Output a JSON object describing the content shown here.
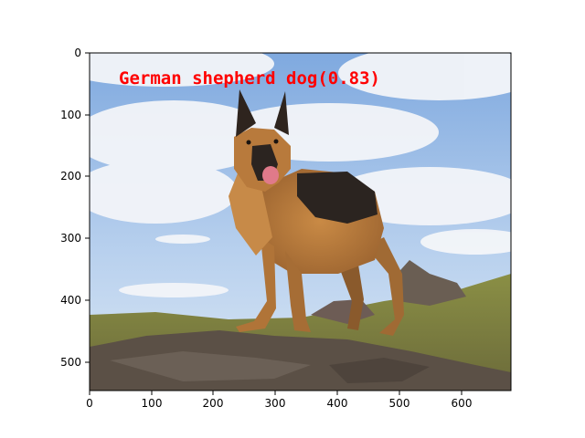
{
  "image": {
    "description_colors": {
      "sky_top": "#8fb6e6",
      "sky_bottom": "#c9dcf2",
      "cloud": "#f4f6fa",
      "grass": "#7f8a3a",
      "rock": "#5e5247",
      "dog_tan": "#b87a3c",
      "dog_black": "#2a2420"
    }
  },
  "detection": {
    "label": "German shepherd dog(0.83)",
    "color": "#ff0000"
  },
  "axes": {
    "x_ticks": [
      "0",
      "100",
      "200",
      "300",
      "400",
      "500",
      "600"
    ],
    "y_ticks": [
      "0",
      "100",
      "200",
      "300",
      "400",
      "500"
    ],
    "xlim": [
      0,
      680
    ],
    "ylim": [
      545,
      0
    ]
  }
}
